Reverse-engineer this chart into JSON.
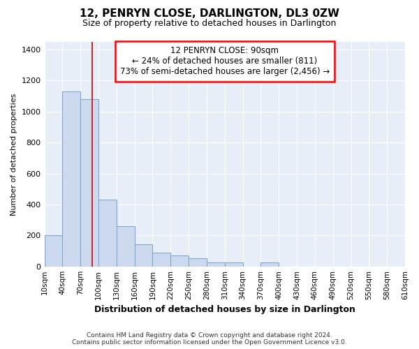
{
  "title": "12, PENRYN CLOSE, DARLINGTON, DL3 0ZW",
  "subtitle": "Size of property relative to detached houses in Darlington",
  "xlabel": "Distribution of detached houses by size in Darlington",
  "ylabel": "Number of detached properties",
  "annotation_line1": "12 PENRYN CLOSE: 90sqm",
  "annotation_line2": "← 24% of detached houses are smaller (811)",
  "annotation_line3": "73% of semi-detached houses are larger (2,456) →",
  "property_sqm": 90,
  "bin_edges": [
    10,
    40,
    70,
    100,
    130,
    160,
    190,
    220,
    250,
    280,
    310,
    340,
    370,
    400,
    430,
    460,
    490,
    520,
    550,
    580,
    610
  ],
  "bar_heights": [
    200,
    1130,
    1080,
    430,
    260,
    145,
    90,
    70,
    55,
    25,
    25,
    0,
    25,
    0,
    0,
    0,
    0,
    0,
    0,
    0
  ],
  "bar_color": "#ccd9ee",
  "bar_edge_color": "#7fa8cc",
  "vline_x": 90,
  "vline_color": "#cc0000",
  "ylim": [
    0,
    1450
  ],
  "yticks": [
    0,
    200,
    400,
    600,
    800,
    1000,
    1200,
    1400
  ],
  "tick_labels": [
    "10sqm",
    "40sqm",
    "70sqm",
    "100sqm",
    "130sqm",
    "160sqm",
    "190sqm",
    "220sqm",
    "250sqm",
    "280sqm",
    "310sqm",
    "340sqm",
    "370sqm",
    "400sqm",
    "430sqm",
    "460sqm",
    "490sqm",
    "520sqm",
    "550sqm",
    "580sqm",
    "610sqm"
  ],
  "background_color": "#e8eef8",
  "grid_color": "#ffffff",
  "footnote1": "Contains HM Land Registry data © Crown copyright and database right 2024.",
  "footnote2": "Contains public sector information licensed under the Open Government Licence v3.0."
}
